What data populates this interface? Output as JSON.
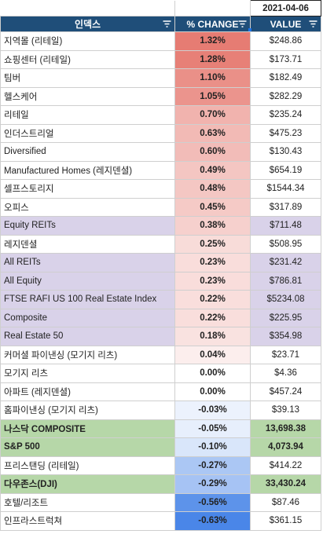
{
  "header": {
    "date": "2021-04-06",
    "col_name": "인덱스",
    "col_change": "% CHANGE",
    "col_value": "VALUE"
  },
  "colors": {
    "header_bg": "#1f4e79",
    "purple_row": "#d9d2e9",
    "green_row": "#b6d7a8",
    "positive_max": "#e67c73",
    "negative_max": "#4a86e8"
  },
  "rows": [
    {
      "name": "지역몰 (리테일)",
      "change": "1.32%",
      "value": "$248.86",
      "style": "plain",
      "pct_num": 1.32
    },
    {
      "name": "쇼핑센터 (리테일)",
      "change": "1.28%",
      "value": "$173.71",
      "style": "plain",
      "pct_num": 1.28
    },
    {
      "name": "팀버",
      "change": "1.10%",
      "value": "$182.49",
      "style": "plain",
      "pct_num": 1.1
    },
    {
      "name": "헬스케어",
      "change": "1.05%",
      "value": "$282.29",
      "style": "plain",
      "pct_num": 1.05
    },
    {
      "name": "리테일",
      "change": "0.70%",
      "value": "$235.24",
      "style": "plain",
      "pct_num": 0.7
    },
    {
      "name": "인더스트리얼",
      "change": "0.63%",
      "value": "$475.23",
      "style": "plain",
      "pct_num": 0.63
    },
    {
      "name": "Diversified",
      "change": "0.60%",
      "value": "$130.43",
      "style": "plain",
      "pct_num": 0.6
    },
    {
      "name": "Manufactured Homes (레지덴셜)",
      "change": "0.49%",
      "value": "$654.19",
      "style": "plain",
      "pct_num": 0.49
    },
    {
      "name": "셀프스토리지",
      "change": "0.48%",
      "value": "$1544.34",
      "style": "plain",
      "pct_num": 0.48
    },
    {
      "name": "오피스",
      "change": "0.45%",
      "value": "$317.89",
      "style": "plain",
      "pct_num": 0.45
    },
    {
      "name": "Equity REITs",
      "change": "0.38%",
      "value": "$711.48",
      "style": "purple",
      "pct_num": 0.38
    },
    {
      "name": "레지덴셜",
      "change": "0.25%",
      "value": "$508.95",
      "style": "plain",
      "pct_num": 0.25
    },
    {
      "name": "All REITs",
      "change": "0.23%",
      "value": "$231.42",
      "style": "purple",
      "pct_num": 0.23
    },
    {
      "name": "All Equity",
      "change": "0.23%",
      "value": "$786.81",
      "style": "purple",
      "pct_num": 0.23
    },
    {
      "name": "FTSE RAFI US 100 Real Estate Index",
      "change": "0.22%",
      "value": "$5234.08",
      "style": "purple",
      "pct_num": 0.22
    },
    {
      "name": "Composite",
      "change": "0.22%",
      "value": "$225.95",
      "style": "purple",
      "pct_num": 0.22
    },
    {
      "name": "Real Estate 50",
      "change": "0.18%",
      "value": "$354.98",
      "style": "purple",
      "pct_num": 0.18
    },
    {
      "name": "커머셜 파이낸싱 (모기지 리츠)",
      "change": "0.04%",
      "value": "$23.71",
      "style": "plain",
      "pct_num": 0.04
    },
    {
      "name": "모기지 리츠",
      "change": "0.00%",
      "value": "$4.36",
      "style": "plain",
      "pct_num": 0.0
    },
    {
      "name": "아파트 (레지덴셜)",
      "change": "0.00%",
      "value": "$457.24",
      "style": "plain",
      "pct_num": 0.0
    },
    {
      "name": "홈파이낸싱 (모기지 리츠)",
      "change": "-0.03%",
      "value": "$39.13",
      "style": "plain",
      "pct_num": -0.03
    },
    {
      "name": "나스닥 COMPOSITE",
      "change": "-0.05%",
      "value": "13,698.38",
      "style": "green",
      "pct_num": -0.05
    },
    {
      "name": "S&P 500",
      "change": "-0.10%",
      "value": "4,073.94",
      "style": "green",
      "pct_num": -0.1
    },
    {
      "name": "프리스탠딩 (리테일)",
      "change": "-0.27%",
      "value": "$414.22",
      "style": "plain",
      "pct_num": -0.27
    },
    {
      "name": "다우존스(DJI)",
      "change": "-0.29%",
      "value": "33,430.24",
      "style": "green",
      "pct_num": -0.29
    },
    {
      "name": "호텔/리조트",
      "change": "-0.56%",
      "value": "$87.46",
      "style": "plain",
      "pct_num": -0.56
    },
    {
      "name": "인프라스트럭쳐",
      "change": "-0.63%",
      "value": "$361.15",
      "style": "plain",
      "pct_num": -0.63
    }
  ]
}
